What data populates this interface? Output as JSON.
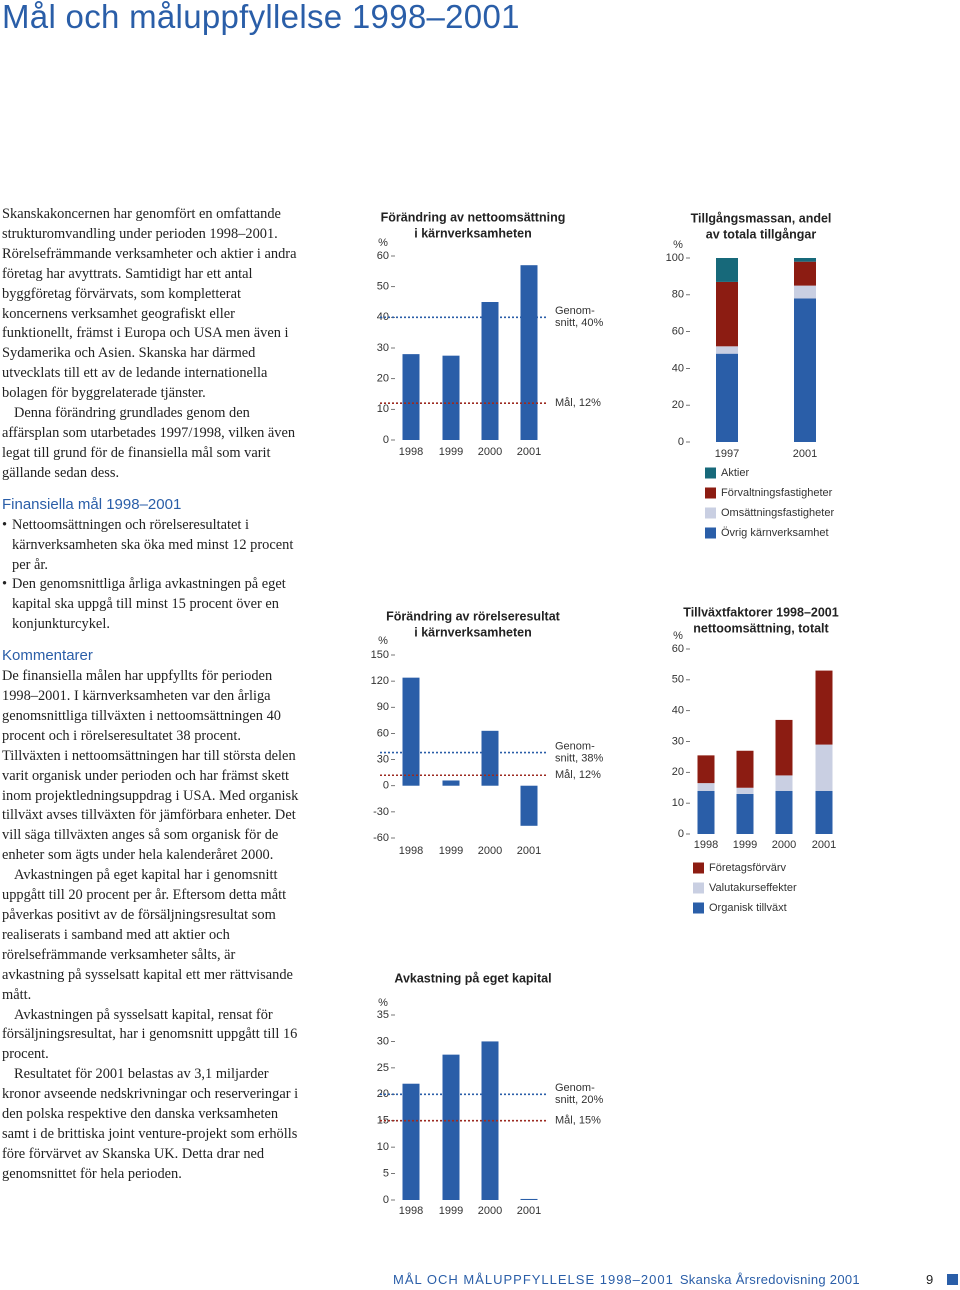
{
  "header": {
    "title": "Mål och måluppfyllelse 1998–2001"
  },
  "intro": [
    "Skanskakoncernen har genomfört en omfattande strukturomvandling under perioden 1998–2001. Rörelsefrämmande verksamheter och aktier i andra företag har avyttrats. Samtidigt har ett antal byggföretag förvärvats, som kompletterat koncernens verksamhet geografiskt eller funktionellt, främst i Europa och USA men även i Sydamerika och Asien. Skanska har därmed utvecklats till ett av de ledande internationella bolagen för byggrelaterade tjänster.",
    "Denna förändring grundlades genom den affärsplan som utarbetades 1997/1998, vilken även legat till grund för de finansiella mål som varit gällande sedan dess."
  ],
  "goals": {
    "heading": "Finansiella mål 1998–2001",
    "bullets": [
      "Nettoomsättningen och rörelseresultatet i kärnverksamheten ska öka med minst 12 procent per år.",
      "Den genomsnittliga årliga avkastningen på eget kapital ska uppgå till minst 15 procent över en konjunkturcykel."
    ]
  },
  "comments": {
    "heading": "Kommentarer",
    "paragraphs": [
      "De finansiella målen har uppfyllts för perioden 1998–2001. I kärnverksamheten var den årliga genomsnittliga tillväxten i nettoomsättningen 40 procent och i rörelseresultatet 38 procent. Tillväxten i nettoomsättningen har till största delen varit organisk under perioden och har främst skett inom projektledningsuppdrag i USA. Med organisk tillväxt avses tillväxten för jämförbara enheter. Det vill säga tillväxten anges så som organisk för de enheter som ägts under hela kalenderåret 2000.",
      "Avkastningen på eget kapital har i genomsnitt uppgått till 20 procent per år. Eftersom detta mått påverkas positivt av de försäljningsresultat som realiserats i samband med att aktier och rörelsefrämmande verksamheter sålts, är avkastning på sysselsatt kapital ett mer rättvisande mått.",
      "Avkastningen på sysselsatt kapital, rensat för försäljningsresultat, har i genomsnitt uppgått till 16 procent.",
      "Resultatet för 2001 belastas av 3,1 miljarder kronor avseende nedskrivningar och reserveringar i den polska respektive den danska verksamheten samt i de brittiska joint venture-projekt som erhölls före förvärvet av Skanska UK. Detta drar ned genomsnittet för hela perioden."
    ]
  },
  "chart_data": [
    {
      "type": "bar",
      "title": [
        "Förändring av nettoomsättning",
        "i kärnverksamheten"
      ],
      "y_unit": "%",
      "categories": [
        "1998",
        "1999",
        "2000",
        "2001"
      ],
      "values": [
        28,
        27.5,
        45,
        57
      ],
      "color": "#2a5ea8",
      "ylim": [
        0,
        60
      ],
      "yticks": [
        0,
        10,
        20,
        30,
        40,
        50,
        60
      ],
      "reference_lines": [
        {
          "value": 40,
          "label": [
            "Genom-",
            "snitt, 40%"
          ],
          "color": "#2a5ea8"
        },
        {
          "value": 12,
          "label": [
            "Mål, 12%"
          ],
          "color": "#9b2a20"
        }
      ]
    },
    {
      "type": "bar",
      "title": [
        "Förändring av rörelseresultat",
        "i kärnverksamheten"
      ],
      "y_unit": "%",
      "categories": [
        "1998",
        "1999",
        "2000",
        "2001"
      ],
      "values": [
        124,
        6,
        63,
        -46
      ],
      "color": "#2a5ea8",
      "ylim": [
        -60,
        150
      ],
      "yticks": [
        -60,
        -30,
        0,
        30,
        60,
        90,
        120,
        150
      ],
      "reference_lines": [
        {
          "value": 38,
          "label": [
            "Genom-",
            "snitt, 38%"
          ],
          "color": "#2a5ea8"
        },
        {
          "value": 12,
          "label": [
            "Mål, 12%"
          ],
          "color": "#9b2a20"
        }
      ]
    },
    {
      "type": "bar",
      "title": [
        "Avkastning på eget kapital"
      ],
      "y_unit": "%",
      "categories": [
        "1998",
        "1999",
        "2000",
        "2001"
      ],
      "values": [
        22,
        27.5,
        30,
        0.2
      ],
      "color": "#2a5ea8",
      "ylim": [
        0,
        35
      ],
      "yticks": [
        0,
        5,
        10,
        15,
        20,
        25,
        30,
        35
      ],
      "reference_lines": [
        {
          "value": 20,
          "label": [
            "Genom-",
            "snitt, 20%"
          ],
          "color": "#2a5ea8"
        },
        {
          "value": 15,
          "label": [
            "Mål, 15%"
          ],
          "color": "#9b2a20"
        }
      ]
    },
    {
      "type": "stacked_bar",
      "title": [
        "Tillgångsmassan, andel",
        "av totala tillgångar"
      ],
      "y_unit": "%",
      "categories": [
        "1997",
        "2001"
      ],
      "ylim": [
        0,
        100
      ],
      "yticks": [
        0,
        20,
        40,
        60,
        80,
        100
      ],
      "series": [
        {
          "name": "Aktier",
          "color": "#17697a",
          "values": [
            13,
            2
          ]
        },
        {
          "name": "Förvaltningsfastigheter",
          "color": "#8c1c12",
          "values": [
            35,
            13
          ]
        },
        {
          "name": "Omsättningsfastigheter",
          "color": "#c9cfe2",
          "values": [
            4,
            7
          ]
        },
        {
          "name": "Övrig kärnverksamhet",
          "color": "#2a5ea8",
          "values": [
            48,
            78
          ]
        }
      ]
    },
    {
      "type": "stacked_bar",
      "title": [
        "Tillväxtfaktorer 1998–2001",
        "nettoomsättning, totalt"
      ],
      "y_unit": "%",
      "categories": [
        "1998",
        "1999",
        "2000",
        "2001"
      ],
      "ylim": [
        0,
        60
      ],
      "yticks": [
        0,
        10,
        20,
        30,
        40,
        50,
        60
      ],
      "series": [
        {
          "name": "Företagsförvärv",
          "color": "#8c1c12",
          "values": [
            9,
            12,
            18,
            24
          ]
        },
        {
          "name": "Valutakurseffekter",
          "color": "#c9cfe2",
          "values": [
            2.5,
            2,
            5,
            15
          ]
        },
        {
          "name": "Organisk tillväxt",
          "color": "#2a5ea8",
          "values": [
            14,
            13,
            14,
            14
          ]
        }
      ]
    }
  ],
  "footer": {
    "section": "MÅL OCH MÅLUPPFYLLELSE 1998–2001",
    "publication": "Skanska Årsredovisning 2001",
    "page": "9"
  }
}
